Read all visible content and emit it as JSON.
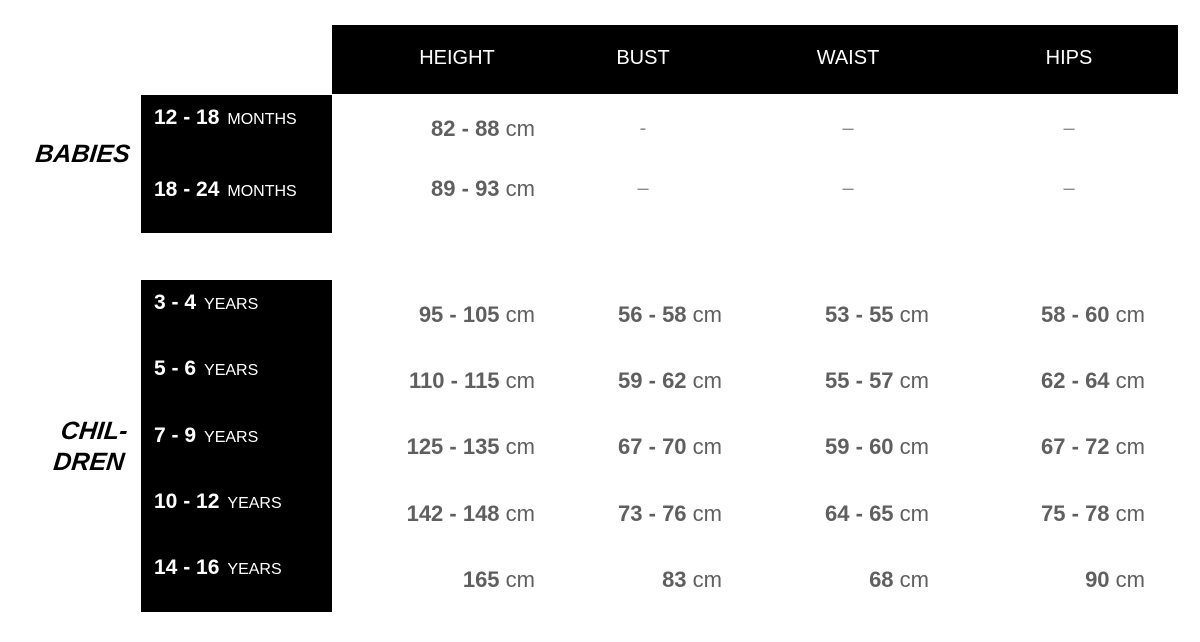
{
  "columns": [
    "HEIGHT",
    "BUST",
    "WAIST",
    "HIPS"
  ],
  "groups": [
    {
      "label": "BABIES",
      "rows": [
        {
          "range": "12 - 18",
          "unit": "MONTHS",
          "values": [
            {
              "num": "82 - 88",
              "unit": "cm"
            },
            {
              "dash": "-"
            },
            {
              "dash": "–"
            },
            {
              "dash": "–"
            }
          ]
        },
        {
          "range": "18 - 24",
          "unit": "MONTHS",
          "values": [
            {
              "num": "89 - 93",
              "unit": "cm"
            },
            {
              "dash": "–"
            },
            {
              "dash": "–"
            },
            {
              "dash": "–"
            }
          ]
        }
      ]
    },
    {
      "label_line1": "CHIL-",
      "label_line2": "DREN",
      "rows": [
        {
          "range": "3 - 4",
          "unit": "YEARS",
          "values": [
            {
              "num": "95 - 105",
              "unit": "cm"
            },
            {
              "num": "56 - 58",
              "unit": "cm"
            },
            {
              "num": "53 - 55",
              "unit": "cm"
            },
            {
              "num": "58 - 60",
              "unit": "cm"
            }
          ]
        },
        {
          "range": "5 - 6",
          "unit": "YEARS",
          "values": [
            {
              "num": "110 - 115",
              "unit": "cm"
            },
            {
              "num": "59 - 62",
              "unit": "cm"
            },
            {
              "num": "55 - 57",
              "unit": "cm"
            },
            {
              "num": "62 - 64",
              "unit": "cm"
            }
          ]
        },
        {
          "range": "7 - 9",
          "unit": "YEARS",
          "values": [
            {
              "num": "125 - 135",
              "unit": "cm"
            },
            {
              "num": "67 - 70",
              "unit": "cm"
            },
            {
              "num": "59 - 60",
              "unit": "cm"
            },
            {
              "num": "67 - 72",
              "unit": "cm"
            }
          ]
        },
        {
          "range": "10 - 12",
          "unit": "YEARS",
          "values": [
            {
              "num": "142 - 148",
              "unit": "cm"
            },
            {
              "num": "73 - 76",
              "unit": "cm"
            },
            {
              "num": "64 - 65",
              "unit": "cm"
            },
            {
              "num": "75 - 78",
              "unit": "cm"
            }
          ]
        },
        {
          "range": "14 - 16",
          "unit": "YEARS",
          "values": [
            {
              "num": "165",
              "unit": "cm"
            },
            {
              "num": "83",
              "unit": "cm"
            },
            {
              "num": "68",
              "unit": "cm"
            },
            {
              "num": "90",
              "unit": "cm"
            }
          ]
        }
      ]
    }
  ]
}
